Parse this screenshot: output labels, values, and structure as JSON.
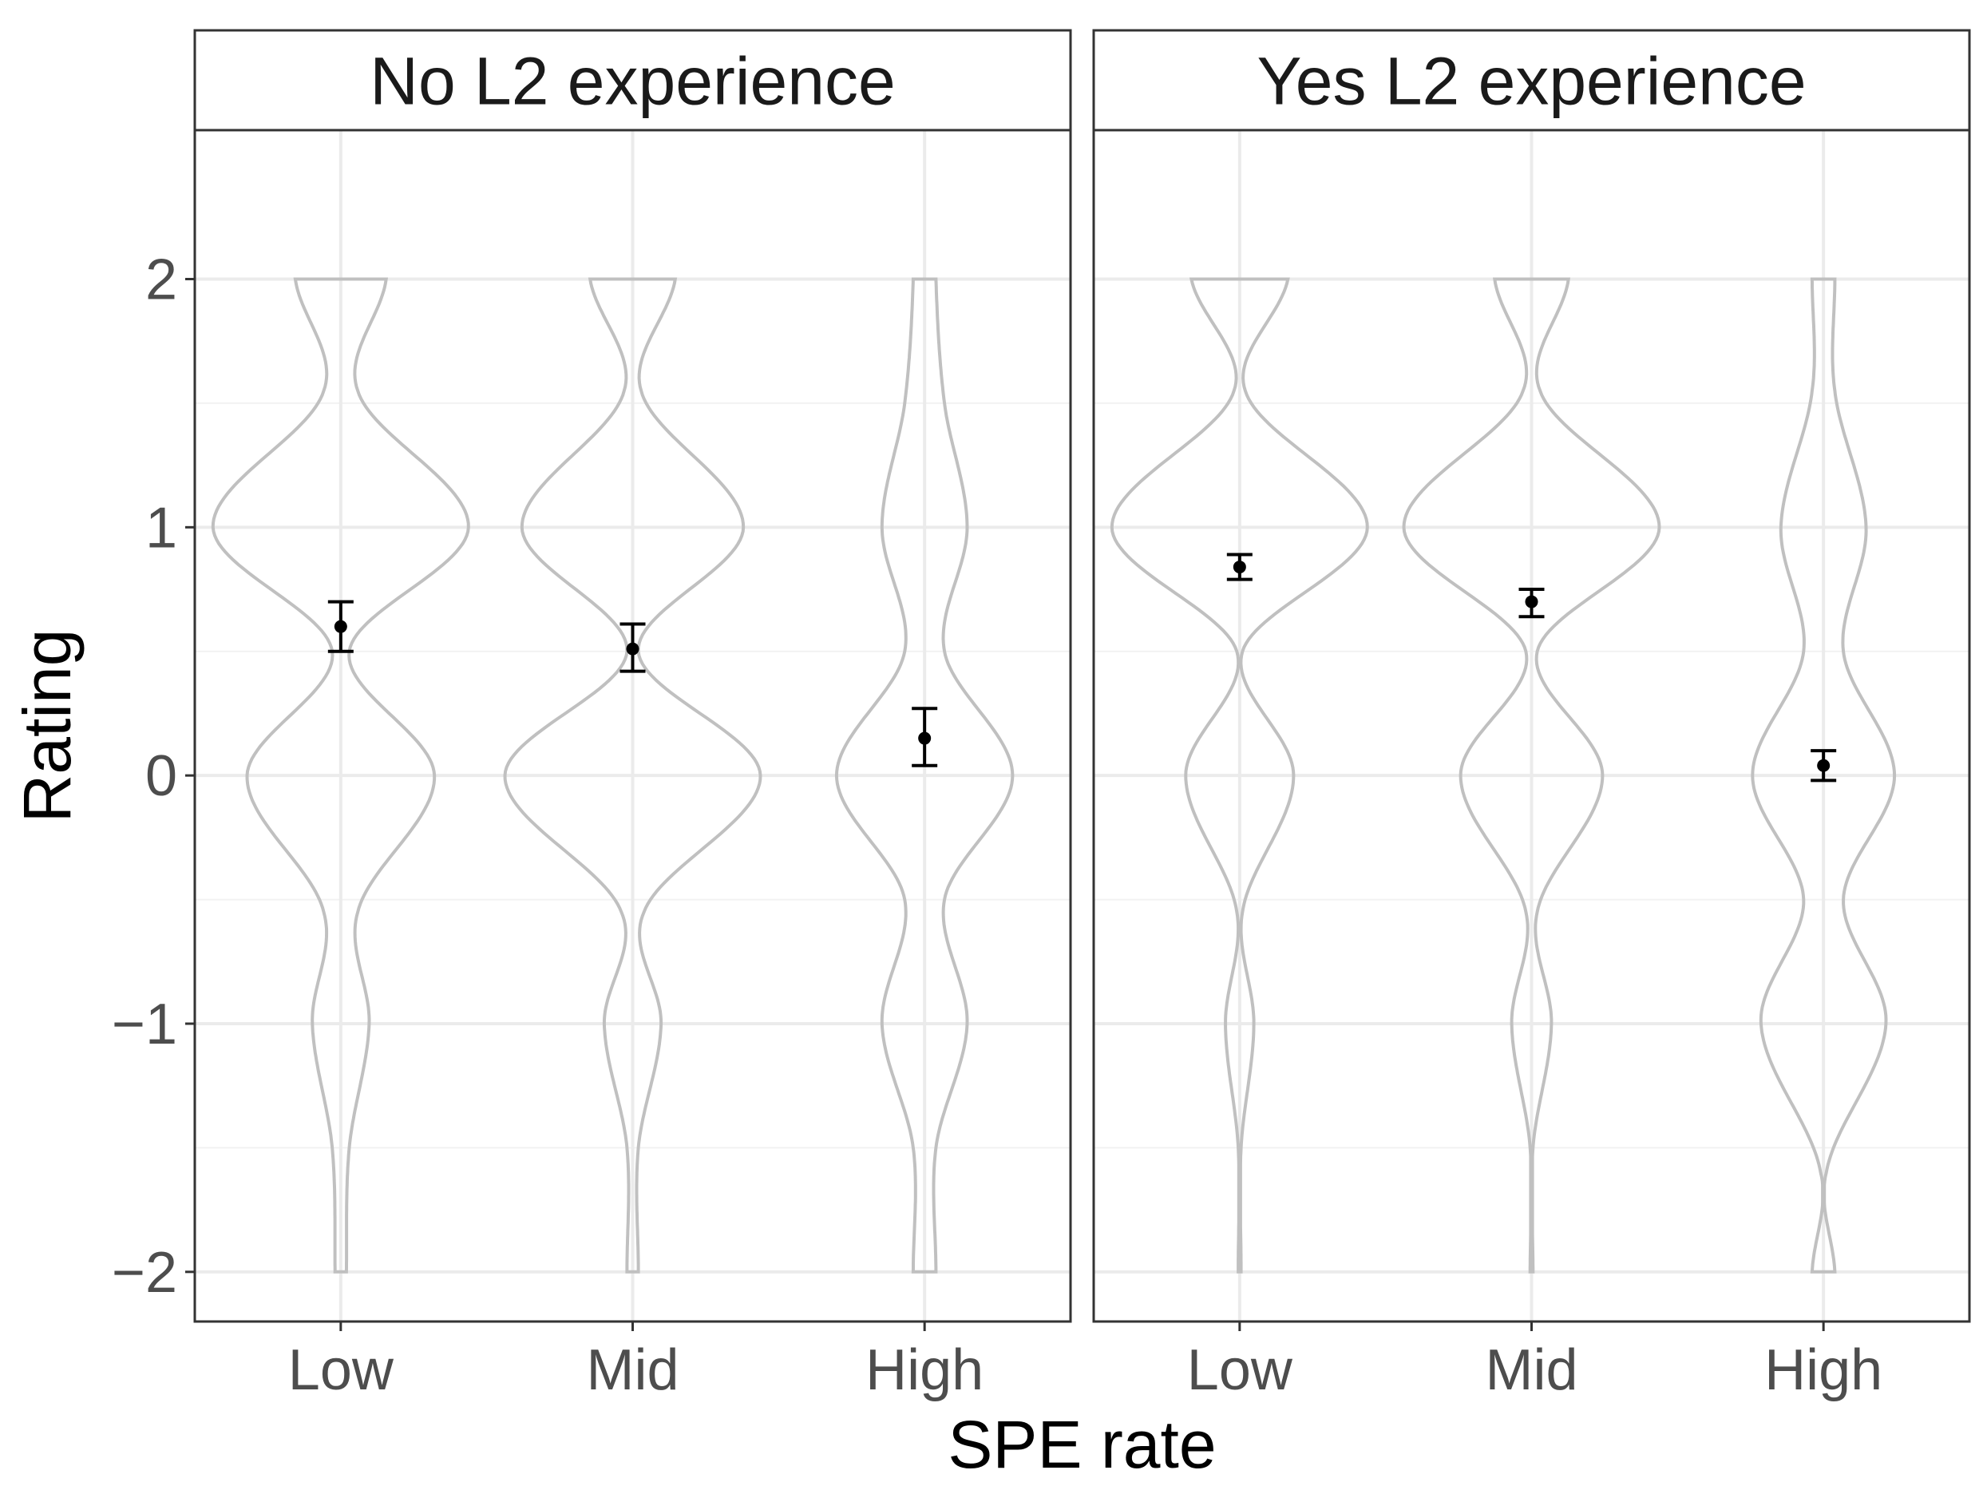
{
  "chart_data": {
    "type": "violin",
    "xlabel": "SPE rate",
    "ylabel": "Rating",
    "categories": [
      "Low",
      "Mid",
      "High"
    ],
    "ylim": [
      -2.2,
      2.6
    ],
    "yticks": [
      -2,
      -1,
      0,
      1,
      2
    ],
    "ytick_labels": [
      "−2",
      "−1",
      "0",
      "1",
      "2"
    ],
    "grid": true,
    "colors": {
      "violin_outline": "#c0c0c0",
      "point": "#000000",
      "grid_major": "#ebebeb",
      "grid_minor": "#f2f2f2",
      "panel_border": "#333333"
    },
    "panels": [
      {
        "strip": "No L2 experience",
        "groups": [
          {
            "category": "Low",
            "mean": 0.6,
            "ci_low": 0.5,
            "ci_high": 0.7,
            "density": [
              {
                "y": -2,
                "w": 0.02
              },
              {
                "y": -1.5,
                "w": 0.03
              },
              {
                "y": -1,
                "w": 0.1
              },
              {
                "y": -0.55,
                "w": 0.06
              },
              {
                "y": 0,
                "w": 0.33
              },
              {
                "y": 0.5,
                "w": 0.03
              },
              {
                "y": 1,
                "w": 0.45
              },
              {
                "y": 1.55,
                "w": 0.06
              },
              {
                "y": 2,
                "w": 0.16
              }
            ]
          },
          {
            "category": "Mid",
            "mean": 0.51,
            "ci_low": 0.42,
            "ci_high": 0.61,
            "density": [
              {
                "y": -2,
                "w": 0.02
              },
              {
                "y": -1.5,
                "w": 0.02
              },
              {
                "y": -1,
                "w": 0.1
              },
              {
                "y": -0.55,
                "w": 0.04
              },
              {
                "y": 0,
                "w": 0.45
              },
              {
                "y": 0.5,
                "w": 0.02
              },
              {
                "y": 1,
                "w": 0.39
              },
              {
                "y": 1.55,
                "w": 0.03
              },
              {
                "y": 2,
                "w": 0.15
              }
            ]
          },
          {
            "category": "High",
            "mean": 0.15,
            "ci_low": 0.04,
            "ci_high": 0.27,
            "density": [
              {
                "y": -2,
                "w": 0.04
              },
              {
                "y": -1.5,
                "w": 0.04
              },
              {
                "y": -1,
                "w": 0.15
              },
              {
                "y": -0.5,
                "w": 0.07
              },
              {
                "y": 0,
                "w": 0.31
              },
              {
                "y": 0.5,
                "w": 0.07
              },
              {
                "y": 1,
                "w": 0.15
              },
              {
                "y": 1.5,
                "w": 0.07
              },
              {
                "y": 2,
                "w": 0.04
              }
            ]
          }
        ]
      },
      {
        "strip": "Yes L2 experience",
        "groups": [
          {
            "category": "Low",
            "mean": 0.84,
            "ci_low": 0.79,
            "ci_high": 0.89,
            "density": [
              {
                "y": -2,
                "w": 0.005
              },
              {
                "y": -1.5,
                "w": 0.005
              },
              {
                "y": -1,
                "w": 0.05
              },
              {
                "y": -0.55,
                "w": 0.01
              },
              {
                "y": 0,
                "w": 0.19
              },
              {
                "y": 0.5,
                "w": 0.01
              },
              {
                "y": 1,
                "w": 0.45
              },
              {
                "y": 1.55,
                "w": 0.02
              },
              {
                "y": 2,
                "w": 0.17
              }
            ]
          },
          {
            "category": "Mid",
            "mean": 0.7,
            "ci_low": 0.64,
            "ci_high": 0.75,
            "density": [
              {
                "y": -2,
                "w": 0.005
              },
              {
                "y": -1.5,
                "w": 0.005
              },
              {
                "y": -1,
                "w": 0.07
              },
              {
                "y": -0.55,
                "w": 0.02
              },
              {
                "y": 0,
                "w": 0.25
              },
              {
                "y": 0.5,
                "w": 0.02
              },
              {
                "y": 1,
                "w": 0.45
              },
              {
                "y": 1.55,
                "w": 0.03
              },
              {
                "y": 2,
                "w": 0.13
              }
            ]
          },
          {
            "category": "High",
            "mean": 0.04,
            "ci_low": -0.02,
            "ci_high": 0.1,
            "density": [
              {
                "y": -2,
                "w": 0.04
              },
              {
                "y": -1.6,
                "w": 0.01
              },
              {
                "y": -1,
                "w": 0.22
              },
              {
                "y": -0.5,
                "w": 0.07
              },
              {
                "y": 0,
                "w": 0.25
              },
              {
                "y": 0.5,
                "w": 0.07
              },
              {
                "y": 1,
                "w": 0.15
              },
              {
                "y": 1.55,
                "w": 0.04
              },
              {
                "y": 2,
                "w": 0.04
              }
            ]
          }
        ]
      }
    ]
  }
}
